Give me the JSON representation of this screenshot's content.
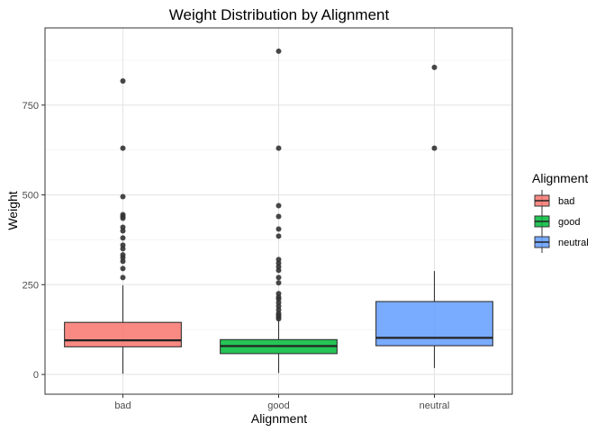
{
  "chart_data": {
    "type": "box",
    "title": "Weight Distribution by Alignment",
    "xlabel": "Alignment",
    "ylabel": "Weight",
    "ylim": [
      -55,
      965
    ],
    "yticks": [
      0,
      250,
      500,
      750
    ],
    "grid": true,
    "legend": {
      "title": "Alignment",
      "position": "right"
    },
    "categories": [
      "bad",
      "good",
      "neutral"
    ],
    "colors": [
      "#F8766D",
      "#00BA38",
      "#619CFF"
    ],
    "boxes": [
      {
        "name": "bad",
        "whisker_low": 2,
        "q1": 77,
        "median": 95,
        "q3": 145,
        "whisker_high": 248,
        "outliers": [
          270,
          295,
          315,
          325,
          333,
          350,
          360,
          380,
          400,
          410,
          435,
          440,
          445,
          495,
          630,
          817
        ]
      },
      {
        "name": "good",
        "whisker_low": 4,
        "q1": 58,
        "median": 79,
        "q3": 97,
        "whisker_high": 150,
        "outliers": [
          155,
          160,
          165,
          170,
          180,
          190,
          200,
          210,
          215,
          225,
          255,
          270,
          290,
          300,
          310,
          320,
          385,
          405,
          440,
          470,
          630,
          900
        ]
      },
      {
        "name": "neutral",
        "whisker_low": 18,
        "q1": 80,
        "median": 102,
        "q3": 203,
        "whisker_high": 288,
        "outliers": [
          630,
          855
        ]
      }
    ]
  }
}
